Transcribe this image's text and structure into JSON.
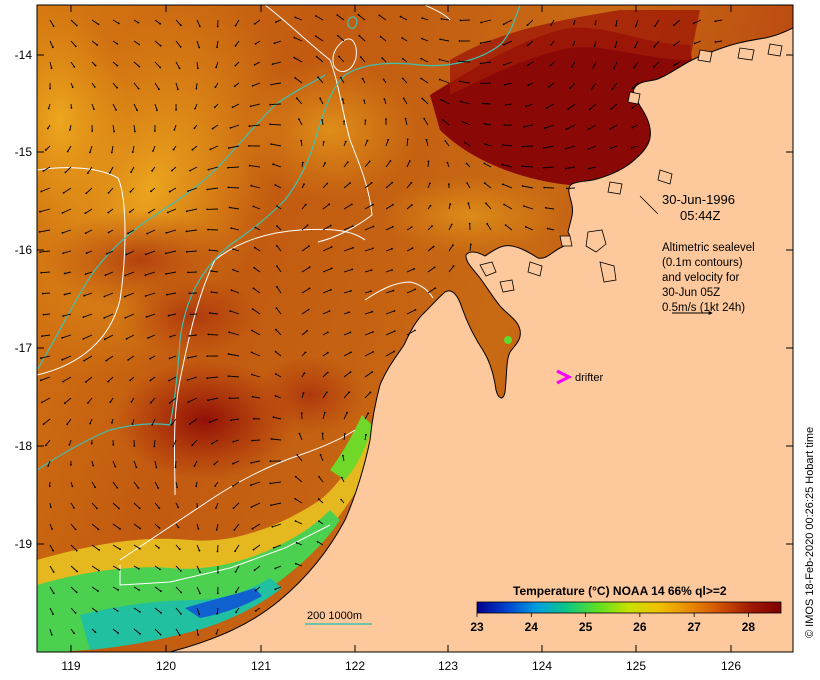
{
  "map": {
    "x_ticks": [
      "119",
      "120",
      "121",
      "122",
      "123",
      "124",
      "125",
      "126"
    ],
    "y_ticks": [
      "-14",
      "-15",
      "-16",
      "-17",
      "-18",
      "-19"
    ],
    "date": "30-Jun-1996",
    "time": "05:44Z",
    "info_lines": [
      "Altimetric sealevel",
      "(0.1m contours)",
      "and velocity for",
      "30-Jun 05Z",
      "0.5m/s (1kt 24h)"
    ],
    "drifter_label": "drifter",
    "drifter_color": "#ff00ff",
    "contour_legend": "200  1000m",
    "isobath_color": "#40c0b0",
    "credit": "© IMOS 18-Feb-2020 00:26:25 Hobart time",
    "land_color": "#fcc89c"
  },
  "colorbar": {
    "title": "Temperature (°C) NOAA 14 66% ql>=2",
    "tick_labels": [
      "23",
      "24",
      "25",
      "26",
      "27",
      "28"
    ],
    "range": [
      23,
      28.6
    ],
    "stops": [
      "#00008c",
      "#0044d0",
      "#00a0e0",
      "#10c880",
      "#60e020",
      "#c8e000",
      "#f0c000",
      "#e88a00",
      "#d05000",
      "#a01800",
      "#800000"
    ]
  }
}
